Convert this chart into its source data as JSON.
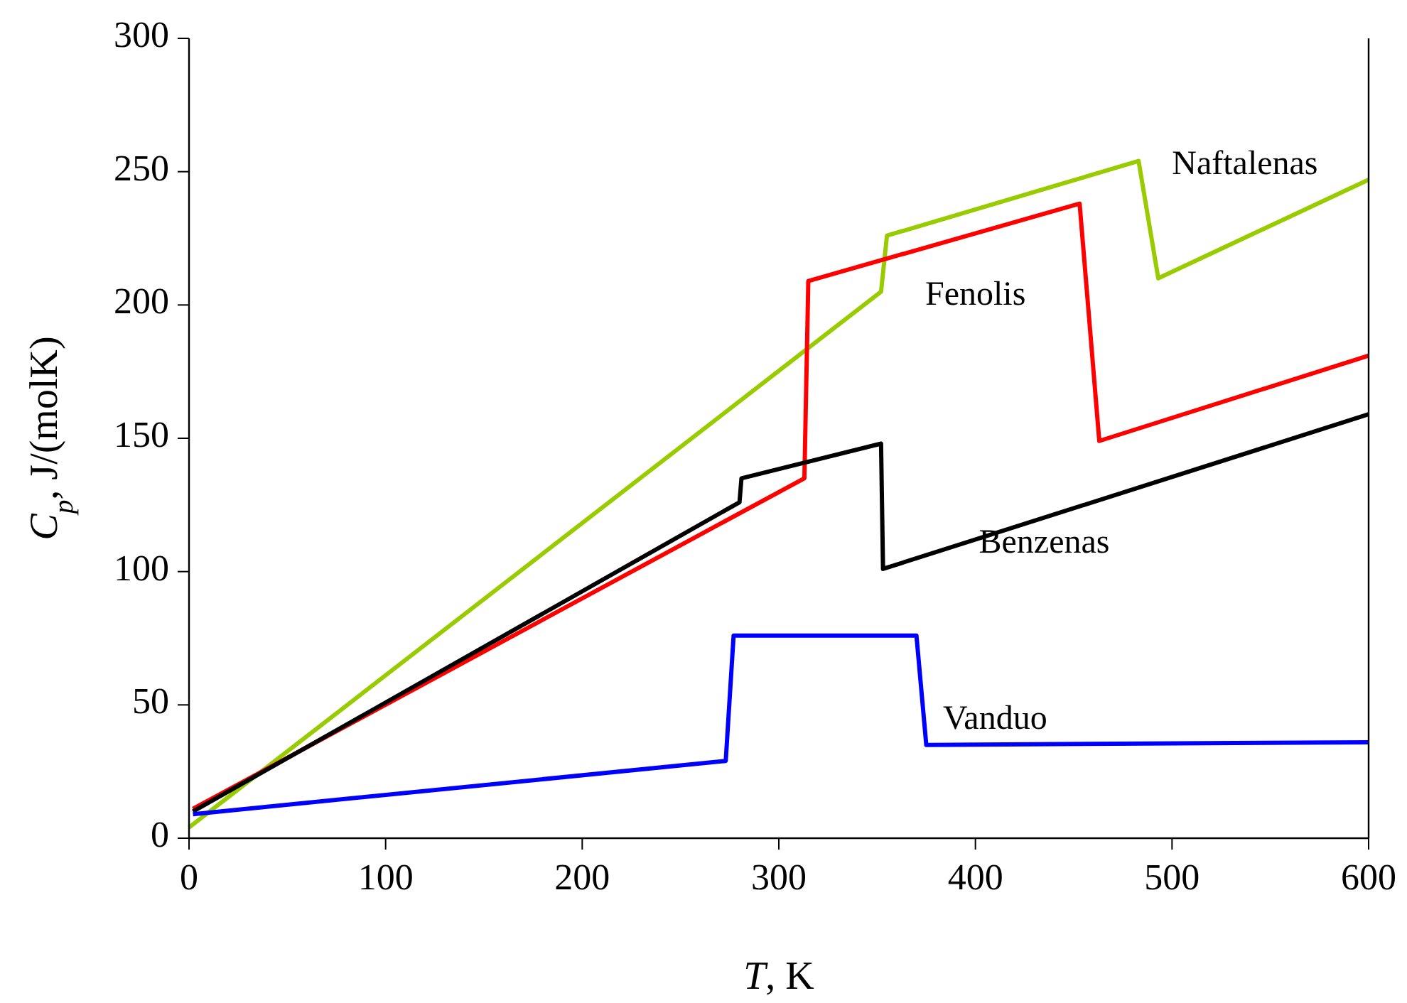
{
  "chart_data": {
    "type": "line",
    "xlabel": "T, K",
    "ylabel": "C$_{p}$, J/(molK)",
    "xlim": [
      0,
      600
    ],
    "ylim": [
      0,
      300
    ],
    "xticks": [
      0,
      100,
      200,
      300,
      400,
      500,
      600
    ],
    "yticks": [
      0,
      50,
      100,
      150,
      200,
      250,
      300
    ],
    "grid": false,
    "marker": "none",
    "line_style": "solid",
    "series": [
      {
        "name": "Naftalenas",
        "color": "#99cc00",
        "x": [
          0,
          352,
          355,
          483,
          493,
          600
        ],
        "values": [
          4,
          205,
          226,
          254,
          210,
          247
        ]
      },
      {
        "name": "Fenolis",
        "color": "#ff0000",
        "x": [
          2,
          313,
          315,
          453,
          463,
          600
        ],
        "values": [
          11,
          135,
          209,
          238,
          149,
          181
        ]
      },
      {
        "name": "Benzenas",
        "color": "#000000",
        "x": [
          2,
          280,
          281,
          352,
          353,
          600
        ],
        "values": [
          10,
          126,
          135,
          148,
          101,
          159
        ]
      },
      {
        "name": "Vanduo",
        "color": "#0000ff",
        "x": [
          2,
          273,
          277,
          370,
          375,
          600
        ],
        "values": [
          9,
          29,
          76,
          76,
          35,
          36
        ]
      }
    ]
  }
}
